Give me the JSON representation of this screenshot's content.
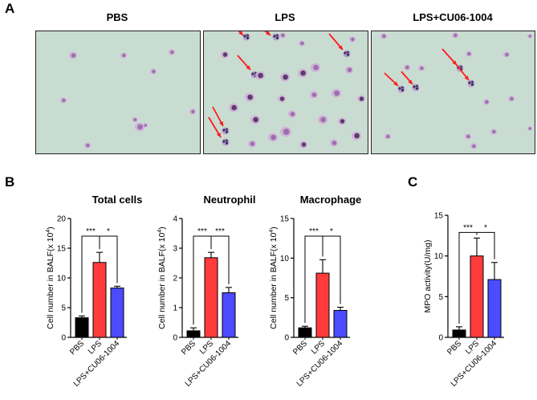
{
  "panels": {
    "a": {
      "letter": "A"
    },
    "b": {
      "letter": "B"
    },
    "c": {
      "letter": "C"
    }
  },
  "images": [
    {
      "title": "PBS",
      "arrows": 0,
      "description_icon": "micrograph-pbs"
    },
    {
      "title": "LPS",
      "arrows": 6,
      "description_icon": "micrograph-lps"
    },
    {
      "title": "LPS+CU06-1004",
      "arrows": 4,
      "description_icon": "micrograph-lps-cu06"
    }
  ],
  "colors": {
    "PBS": "#000000",
    "LPS": "#ff3b3b",
    "LPS+CU06-1004": "#4b4bff",
    "background_image": "#c9dcd2"
  },
  "chart_data": [
    {
      "type": "bar",
      "title": "Total cells",
      "ylabel": "Cell number in BALF(x 10",
      "ylabel_sup": "4",
      "ylabel_end": ")",
      "categories": [
        "PBS",
        "LPS",
        "LPS+CU06-1004"
      ],
      "values": [
        3.3,
        12.6,
        8.3
      ],
      "errors": [
        0.3,
        1.7,
        0.3
      ],
      "ylim": [
        0,
        20
      ],
      "yticks": [
        0,
        5,
        10,
        15,
        20
      ],
      "significance": [
        {
          "from": 0,
          "to": 1,
          "label": "***"
        },
        {
          "from": 1,
          "to": 2,
          "label": "*"
        }
      ]
    },
    {
      "type": "bar",
      "title": "Neutrophil",
      "ylabel": "Cell number in BALF(x 10",
      "ylabel_sup": "4",
      "ylabel_end": ")",
      "categories": [
        "PBS",
        "LPS",
        "LPS+CU06-1004"
      ],
      "values": [
        0.22,
        2.68,
        1.5
      ],
      "errors": [
        0.1,
        0.18,
        0.18
      ],
      "ylim": [
        0,
        4
      ],
      "yticks": [
        0,
        1,
        2,
        3,
        4
      ],
      "significance": [
        {
          "from": 0,
          "to": 1,
          "label": "***"
        },
        {
          "from": 1,
          "to": 2,
          "label": "***"
        }
      ]
    },
    {
      "type": "bar",
      "title": "Macrophage",
      "ylabel": "Cell number in BALF(x 10",
      "ylabel_sup": "4",
      "ylabel_end": ")",
      "categories": [
        "PBS",
        "LPS",
        "LPS+CU06-1004"
      ],
      "values": [
        1.2,
        8.1,
        3.4
      ],
      "errors": [
        0.2,
        1.7,
        0.4
      ],
      "ylim": [
        0,
        15
      ],
      "yticks": [
        0,
        5,
        10,
        15
      ],
      "significance": [
        {
          "from": 0,
          "to": 1,
          "label": "***"
        },
        {
          "from": 1,
          "to": 2,
          "label": "*"
        }
      ]
    },
    {
      "type": "bar",
      "title": "",
      "ylabel": "MPO activity(U/mg)",
      "ylabel_sup": "",
      "ylabel_end": "",
      "categories": [
        "PBS",
        "LPS",
        "LPS+CU06-1004"
      ],
      "values": [
        0.9,
        10.0,
        7.1
      ],
      "errors": [
        0.4,
        2.2,
        2.1
      ],
      "ylim": [
        0,
        15
      ],
      "yticks": [
        0,
        5,
        10,
        15
      ],
      "significance": [
        {
          "from": 0,
          "to": 1,
          "label": "***"
        },
        {
          "from": 1,
          "to": 2,
          "label": "*"
        }
      ]
    }
  ]
}
